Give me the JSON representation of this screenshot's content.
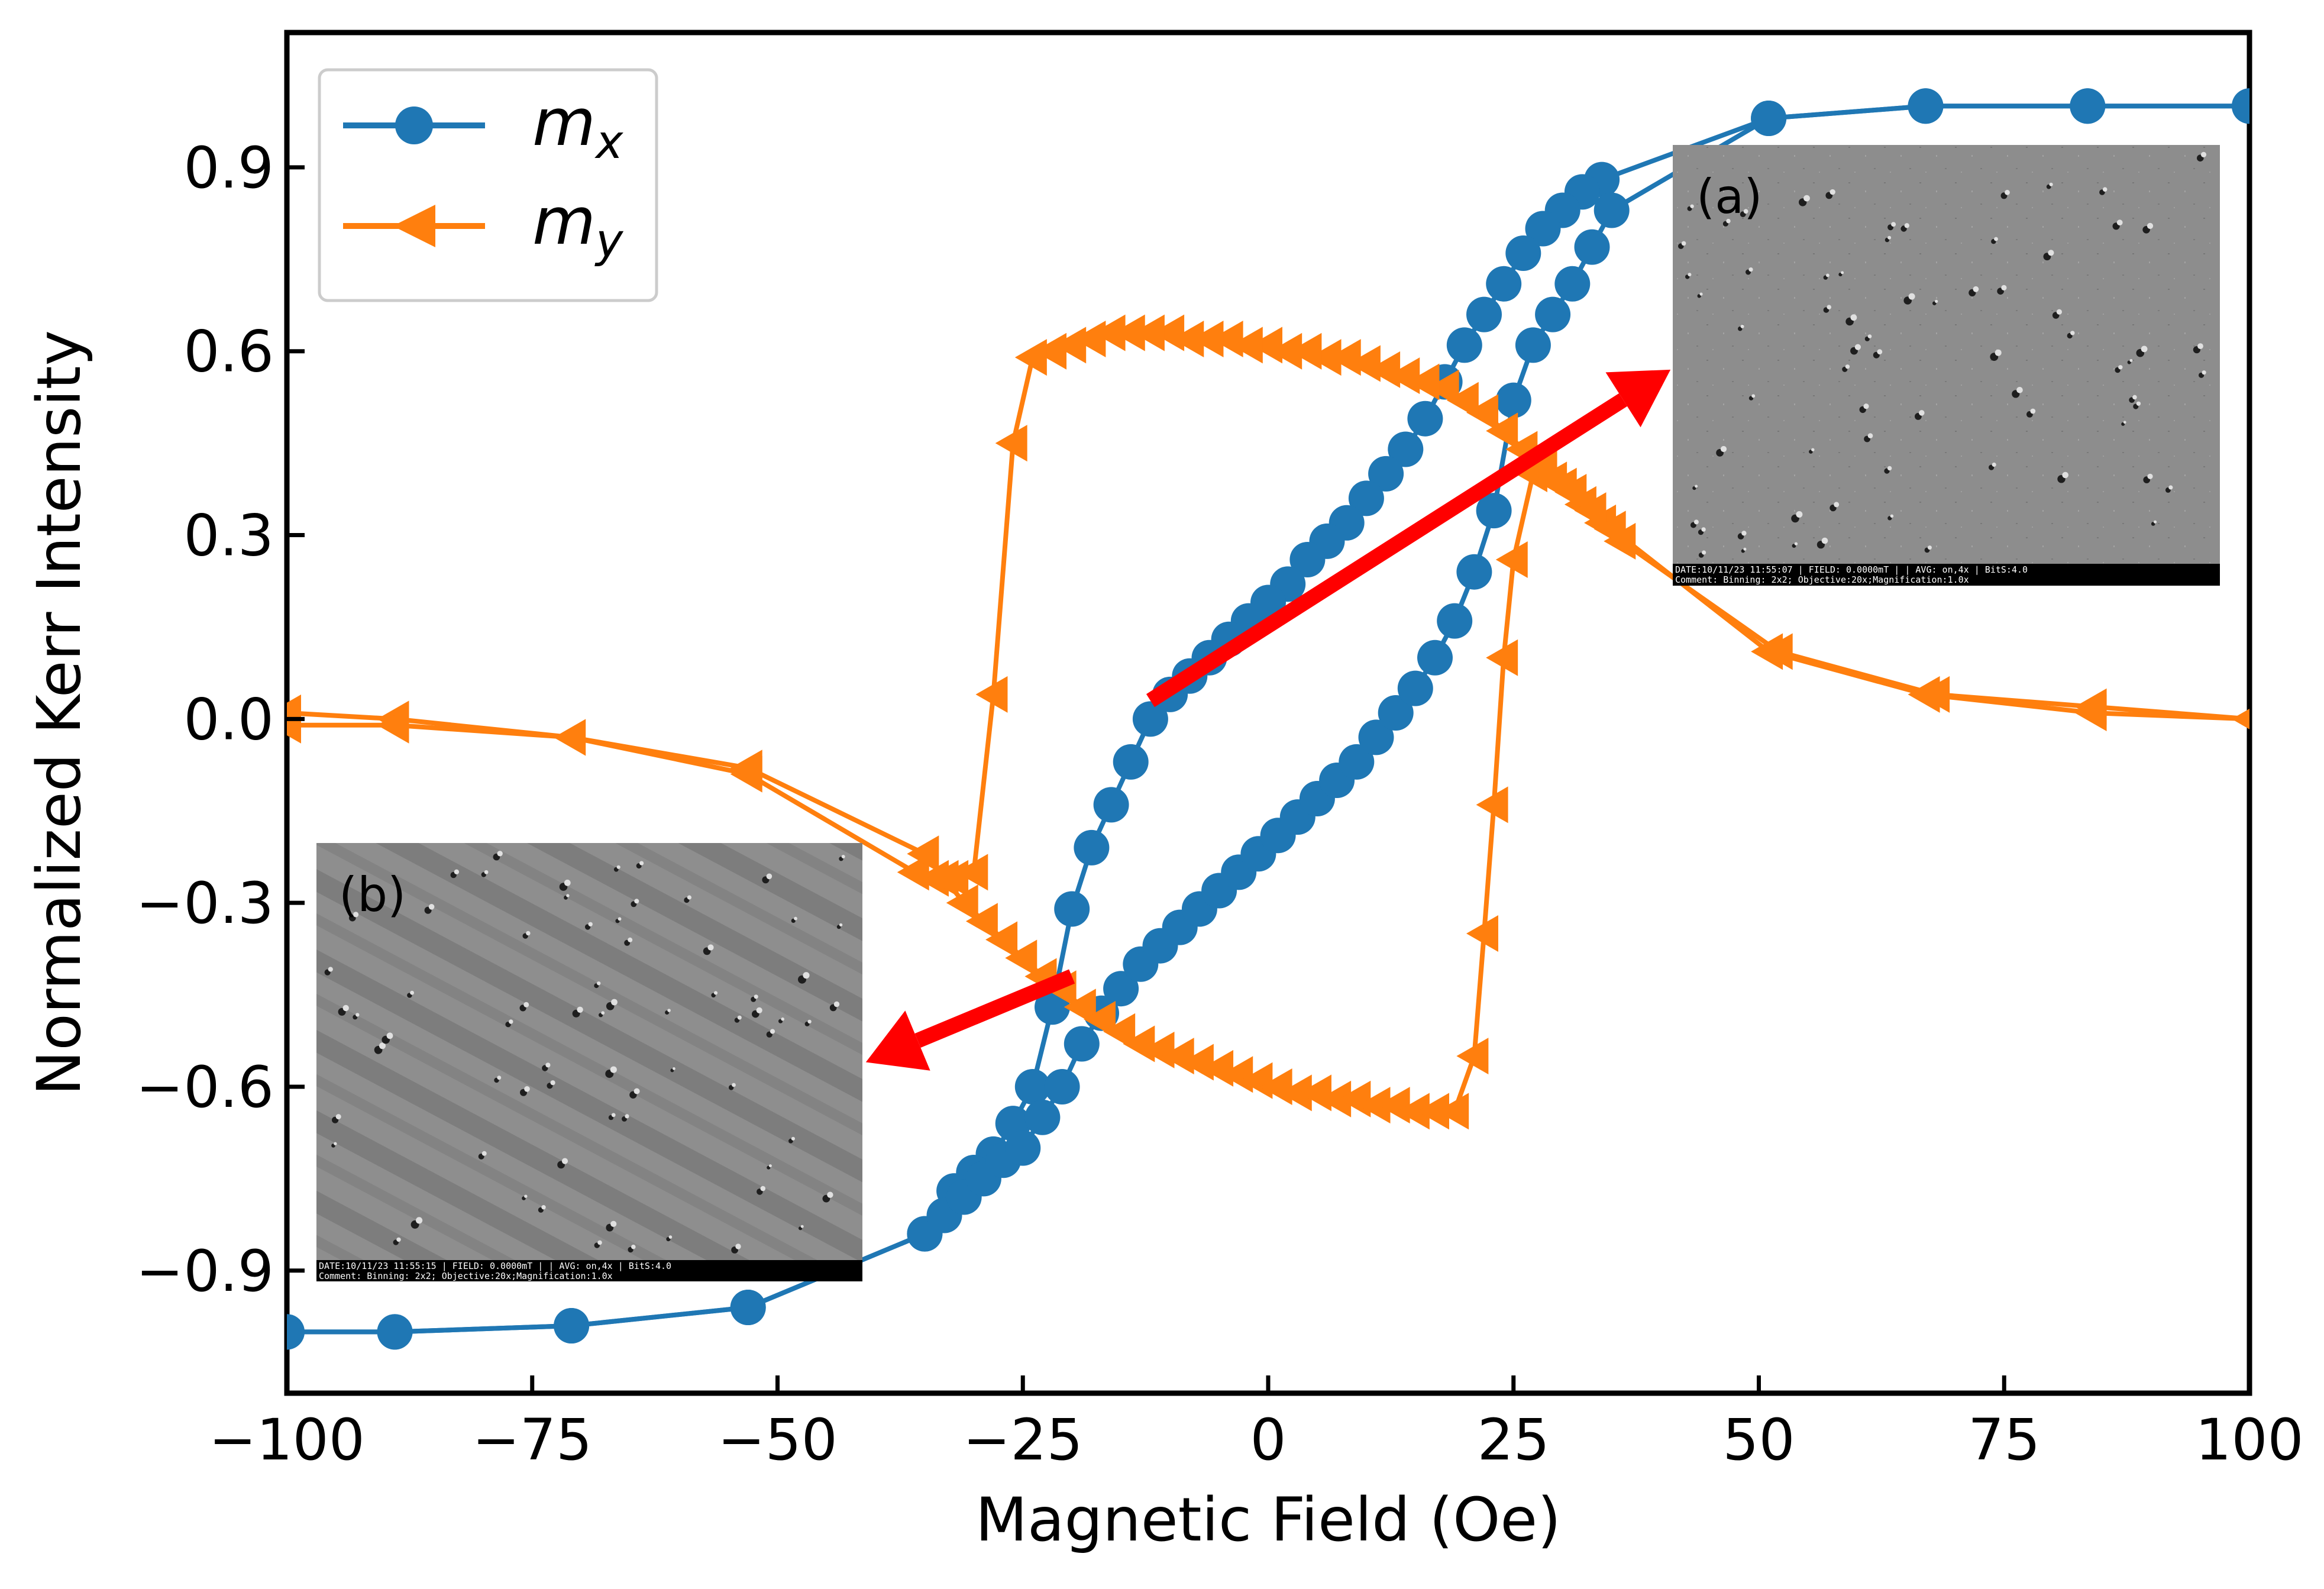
{
  "chart_data": {
    "type": "line",
    "title": "",
    "xlabel": "Magnetic Field (Oe)",
    "ylabel": "Normalized Kerr Intensity",
    "xlim": [
      -100,
      100
    ],
    "ylim": [
      -1.1,
      1.12
    ],
    "xticks": [
      -100,
      -75,
      -50,
      -25,
      0,
      25,
      50,
      75,
      100
    ],
    "xtick_labels": [
      "−100",
      "−75",
      "−50",
      "−25",
      "0",
      "25",
      "50",
      "75",
      "100"
    ],
    "yticks": [
      -0.9,
      -0.6,
      -0.3,
      0.0,
      0.3,
      0.6,
      0.9
    ],
    "ytick_labels": [
      "−0.9",
      "−0.6",
      "−0.3",
      "0.0",
      "0.3",
      "0.6",
      "0.9"
    ],
    "grid": false,
    "legend_position": "top-left",
    "series": [
      {
        "name": "m",
        "subscript": "x",
        "color": "#1f77b4",
        "marker": "circle",
        "branches": [
          {
            "x": [
              100,
              83.5,
              67,
              51,
              34,
              32,
              30,
              28,
              26,
              24,
              22,
              20,
              18,
              16,
              14,
              12,
              10,
              8,
              6,
              4,
              2,
              0,
              -2,
              -4,
              -6,
              -8,
              -10,
              -12,
              -14,
              -16,
              -18,
              -20,
              -22,
              -24,
              -26,
              -28,
              -30,
              -32,
              -35,
              -53,
              -71,
              -89,
              -100
            ],
            "y": [
              1.0,
              1.0,
              1.0,
              0.98,
              0.88,
              0.86,
              0.83,
              0.8,
              0.76,
              0.71,
              0.66,
              0.61,
              0.55,
              0.49,
              0.44,
              0.4,
              0.36,
              0.32,
              0.29,
              0.26,
              0.22,
              0.19,
              0.16,
              0.13,
              0.1,
              0.07,
              0.04,
              0.0,
              -0.07,
              -0.14,
              -0.21,
              -0.31,
              -0.47,
              -0.6,
              -0.66,
              -0.71,
              -0.74,
              -0.77,
              -0.84,
              -0.96,
              -0.99,
              -1.0,
              -1.0
            ]
          },
          {
            "x": [
              -100,
              -89,
              -71,
              -53,
              -35,
              -33,
              -31,
              -29,
              -27,
              -25,
              -23,
              -21,
              -19,
              -17,
              -15,
              -13,
              -11,
              -9,
              -7,
              -5,
              -3,
              -1,
              1,
              3,
              5,
              7,
              9,
              11,
              13,
              15,
              17,
              19,
              21,
              23,
              25,
              27,
              29,
              31,
              33,
              35,
              51,
              67,
              83.5,
              100
            ],
            "y": [
              -1.0,
              -1.0,
              -0.99,
              -0.96,
              -0.84,
              -0.81,
              -0.78,
              -0.75,
              -0.72,
              -0.7,
              -0.65,
              -0.6,
              -0.53,
              -0.48,
              -0.44,
              -0.4,
              -0.37,
              -0.34,
              -0.31,
              -0.28,
              -0.25,
              -0.22,
              -0.19,
              -0.16,
              -0.13,
              -0.1,
              -0.07,
              -0.03,
              0.01,
              0.05,
              0.1,
              0.16,
              0.24,
              0.34,
              0.52,
              0.61,
              0.66,
              0.71,
              0.77,
              0.83,
              0.98,
              1.0,
              1.0,
              1.0
            ]
          }
        ]
      },
      {
        "name": "m",
        "subscript": "y",
        "color": "#ff7f0e",
        "marker": "triangle-left",
        "branches": [
          {
            "x": [
              100,
              84,
              68,
              52,
              36,
              34,
              32,
              30,
              28,
              26,
              24,
              22,
              20,
              18,
              16,
              14,
              12,
              10,
              8,
              6,
              4,
              2,
              0,
              -2,
              -4,
              -6,
              -8,
              -10,
              -12,
              -14,
              -16,
              -18,
              -20,
              -22,
              -24,
              -26,
              -28,
              -30,
              -32,
              -34,
              -36,
              -53,
              -71,
              -89,
              -100
            ],
            "y": [
              0.0,
              0.02,
              0.04,
              0.11,
              0.29,
              0.32,
              0.35,
              0.38,
              0.41,
              0.44,
              0.47,
              0.5,
              0.52,
              0.54,
              0.55,
              0.56,
              0.57,
              0.58,
              0.59,
              0.59,
              0.6,
              0.6,
              0.61,
              0.61,
              0.62,
              0.62,
              0.62,
              0.63,
              0.63,
              0.63,
              0.63,
              0.62,
              0.61,
              0.6,
              0.59,
              0.45,
              0.04,
              -0.25,
              -0.26,
              -0.26,
              -0.25,
              -0.09,
              -0.03,
              0.0,
              0.01
            ]
          },
          {
            "x": [
              -100,
              -89,
              -71,
              -53,
              -35,
              -33,
              -31,
              -29,
              -27,
              -25,
              -23,
              -21,
              -19,
              -17,
              -15,
              -13,
              -11,
              -9,
              -7,
              -5,
              -3,
              -1,
              1,
              3,
              5,
              7,
              9,
              11,
              13,
              15,
              17,
              19,
              21,
              22,
              23,
              24,
              25,
              27,
              29,
              31,
              33,
              35,
              51,
              67,
              84,
              100
            ],
            "y": [
              -0.01,
              -0.01,
              -0.03,
              -0.08,
              -0.22,
              -0.26,
              -0.3,
              -0.33,
              -0.36,
              -0.39,
              -0.42,
              -0.44,
              -0.47,
              -0.49,
              -0.51,
              -0.53,
              -0.54,
              -0.55,
              -0.56,
              -0.57,
              -0.58,
              -0.59,
              -0.6,
              -0.61,
              -0.61,
              -0.62,
              -0.62,
              -0.63,
              -0.63,
              -0.64,
              -0.64,
              -0.64,
              -0.55,
              -0.35,
              -0.14,
              0.1,
              0.26,
              0.4,
              0.39,
              0.37,
              0.34,
              0.31,
              0.11,
              0.04,
              0.01,
              0.0
            ]
          }
        ]
      }
    ],
    "annotations": [
      {
        "text": "(a)",
        "arrow_from": [
          -12,
          0.03
        ],
        "arrow_to": [
          41,
          0.57
        ]
      },
      {
        "text": "(b)",
        "arrow_from": [
          -20,
          -0.42
        ],
        "arrow_to": [
          -41,
          -0.56
        ]
      }
    ],
    "insets": [
      {
        "label": "(a)",
        "footer_line1": "DATE:10/11/23 11:55:07 |  FIELD: 0.0000mT |  | AVG: on,4x | BitS:4.0",
        "footer_line2": "Comment:  Binning: 2x2;  Objective:20x;Magnification:1.0x"
      },
      {
        "label": "(b)",
        "footer_line1": "DATE:10/11/23 11:55:15 |  FIELD: 0.0000mT |  | AVG: on,4x | BitS:4.0",
        "footer_line2": "Comment:  Binning: 2x2;  Objective:20x;Magnification:1.0x"
      }
    ],
    "arrow_color": "#ff0000"
  }
}
